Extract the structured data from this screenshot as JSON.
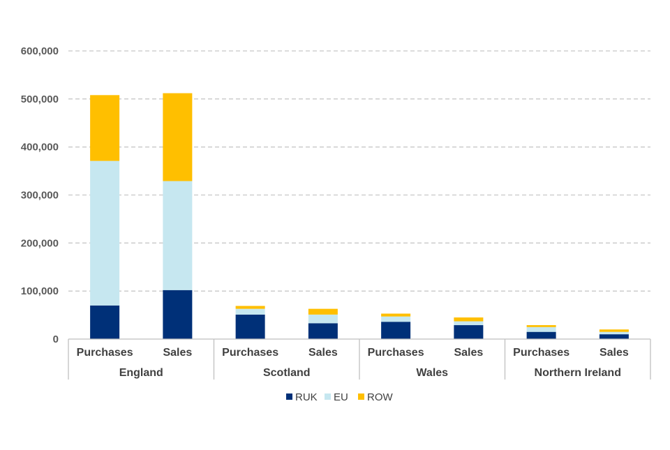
{
  "chart_data": {
    "type": "bar",
    "stacked": true,
    "groups": [
      "England",
      "Scotland",
      "Wales",
      "Northern Ireland"
    ],
    "subcategories": [
      "Purchases",
      "Sales"
    ],
    "categories": [
      "England Purchases",
      "England Sales",
      "Scotland Purchases",
      "Scotland Sales",
      "Wales Purchases",
      "Wales Sales",
      "Northern Ireland Purchases",
      "Northern Ireland Sales"
    ],
    "series": [
      {
        "name": "RUK",
        "color": "#003078",
        "values": [
          70000,
          102000,
          51000,
          33000,
          36000,
          29000,
          15000,
          10000
        ]
      },
      {
        "name": "EU",
        "color": "#c6e7f0",
        "values": [
          301000,
          227000,
          12000,
          18000,
          11000,
          8000,
          10000,
          5000
        ]
      },
      {
        "name": "ROW",
        "color": "#ffbf00",
        "values": [
          137000,
          183000,
          6000,
          12000,
          6000,
          8000,
          4000,
          5000
        ]
      }
    ],
    "ylim": [
      0,
      600000
    ],
    "yticks": [
      0,
      100000,
      200000,
      300000,
      400000,
      500000,
      600000
    ],
    "ytick_labels": [
      "0",
      "100,000",
      "200,000",
      "300,000",
      "400,000",
      "500,000",
      "600,000"
    ],
    "grid": true,
    "legend_position": "bottom",
    "title": "",
    "xlabel": "",
    "ylabel": ""
  }
}
